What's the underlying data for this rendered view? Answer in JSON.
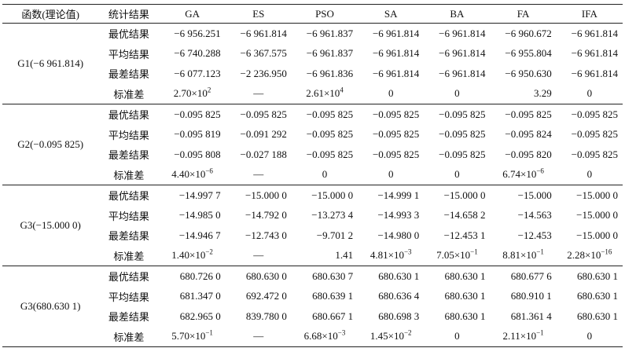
{
  "headers": [
    "函数(理论值)",
    "统计结果",
    "GA",
    "ES",
    "PSO",
    "SA",
    "BA",
    "FA",
    "IFA"
  ],
  "groups": [
    {
      "func": "G1(−6 961.814)",
      "rows": [
        {
          "stat": "最优结果",
          "vals": [
            [
              "−6 956.251"
            ],
            [
              "−6 961.814"
            ],
            [
              "−6 961.837"
            ],
            [
              "−6 961.814"
            ],
            [
              "−6 961.814"
            ],
            [
              "−6 960.672"
            ],
            [
              "−6 961.814"
            ]
          ]
        },
        {
          "stat": "平均结果",
          "vals": [
            [
              "−6 740.288"
            ],
            [
              "−6 367.575"
            ],
            [
              "−6 961.837"
            ],
            [
              "−6 961.814"
            ],
            [
              "−6 961.814"
            ],
            [
              "−6 955.804"
            ],
            [
              "−6 961.814"
            ]
          ]
        },
        {
          "stat": "最差结果",
          "vals": [
            [
              "−6 077.123"
            ],
            [
              "−2 236.950"
            ],
            [
              "−6 961.836"
            ],
            [
              "−6 961.814"
            ],
            [
              "−6 961.814"
            ],
            [
              "−6 950.630"
            ],
            [
              "−6 961.814"
            ]
          ]
        },
        {
          "stat": "标准差",
          "vals": [
            [
              "2.70×10",
              "2"
            ],
            [
              "—"
            ],
            [
              "2.61×10",
              "4"
            ],
            [
              "0"
            ],
            [
              "0"
            ],
            [
              "3.29"
            ],
            [
              "0"
            ]
          ]
        }
      ]
    },
    {
      "func": "G2(−0.095 825)",
      "rows": [
        {
          "stat": "最优结果",
          "vals": [
            [
              "−0.095 825"
            ],
            [
              "−0.095 825"
            ],
            [
              "−0.095 825"
            ],
            [
              "−0.095 825"
            ],
            [
              "−0.095 825"
            ],
            [
              "−0.095 825"
            ],
            [
              "−0.095 825"
            ]
          ]
        },
        {
          "stat": "平均结果",
          "vals": [
            [
              "−0.095 819"
            ],
            [
              "−0.091 292"
            ],
            [
              "−0.095 825"
            ],
            [
              "−0.095 825"
            ],
            [
              "−0.095 825"
            ],
            [
              "−0.095 824"
            ],
            [
              "−0.095 825"
            ]
          ]
        },
        {
          "stat": "最差结果",
          "vals": [
            [
              "−0.095 808"
            ],
            [
              "−0.027 188"
            ],
            [
              "−0.095 825"
            ],
            [
              "−0.095 825"
            ],
            [
              "−0.095 825"
            ],
            [
              "−0.095 820"
            ],
            [
              "−0.095 825"
            ]
          ]
        },
        {
          "stat": "标准差",
          "vals": [
            [
              "4.40×10",
              "−6"
            ],
            [
              "—"
            ],
            [
              "0"
            ],
            [
              "0"
            ],
            [
              "0"
            ],
            [
              "6.74×10",
              "−6"
            ],
            [
              "0"
            ]
          ]
        }
      ]
    },
    {
      "func": "G3(−15.000 0)",
      "rows": [
        {
          "stat": "最优结果",
          "vals": [
            [
              "−14.997 7"
            ],
            [
              "−15.000 0"
            ],
            [
              "−15.000 0"
            ],
            [
              "−14.999 1"
            ],
            [
              "−15.000 0"
            ],
            [
              "−15.000"
            ],
            [
              "−15.000 0"
            ]
          ]
        },
        {
          "stat": "平均结果",
          "vals": [
            [
              "−14.985 0"
            ],
            [
              "−14.792 0"
            ],
            [
              "−13.273 4"
            ],
            [
              "−14.993 3"
            ],
            [
              "−14.658 2"
            ],
            [
              "−14.563"
            ],
            [
              "−15.000 0"
            ]
          ]
        },
        {
          "stat": "最差结果",
          "vals": [
            [
              "−14.946 7"
            ],
            [
              "−12.743 0"
            ],
            [
              "−9.701 2"
            ],
            [
              "−14.980 0"
            ],
            [
              "−12.453 1"
            ],
            [
              "−12.453"
            ],
            [
              "−15.000 0"
            ]
          ]
        },
        {
          "stat": "标准差",
          "vals": [
            [
              "1.40×10",
              "−2"
            ],
            [
              "—"
            ],
            [
              "1.41"
            ],
            [
              "4.81×10",
              "−3"
            ],
            [
              "7.05×10",
              "−1"
            ],
            [
              "8.81×10",
              "−1"
            ],
            [
              "2.28×10",
              "−16"
            ]
          ]
        }
      ]
    },
    {
      "func": "G3(680.630 1)",
      "rows": [
        {
          "stat": "最优结果",
          "vals": [
            [
              "680.726 0"
            ],
            [
              "680.630 0"
            ],
            [
              "680.630 7"
            ],
            [
              "680.630 1"
            ],
            [
              "680.630 1"
            ],
            [
              "680.677 6"
            ],
            [
              "680.630 1"
            ]
          ]
        },
        {
          "stat": "平均结果",
          "vals": [
            [
              "681.347 0"
            ],
            [
              "692.472 0"
            ],
            [
              "680.639 1"
            ],
            [
              "680.636 4"
            ],
            [
              "680.630 1"
            ],
            [
              "680.910 1"
            ],
            [
              "680.630 1"
            ]
          ]
        },
        {
          "stat": "最差结果",
          "vals": [
            [
              "682.965 0"
            ],
            [
              "839.780 0"
            ],
            [
              "680.667 1"
            ],
            [
              "680.698 3"
            ],
            [
              "680.630 1"
            ],
            [
              "681.361 4"
            ],
            [
              "680.630 1"
            ]
          ]
        },
        {
          "stat": "标准差",
          "vals": [
            [
              "5.70×10",
              "−1"
            ],
            [
              "—"
            ],
            [
              "6.68×10",
              "−3"
            ],
            [
              "1.45×10",
              "−2"
            ],
            [
              "0"
            ],
            [
              "2.11×10",
              "−1"
            ],
            [
              "0"
            ]
          ]
        }
      ]
    }
  ]
}
